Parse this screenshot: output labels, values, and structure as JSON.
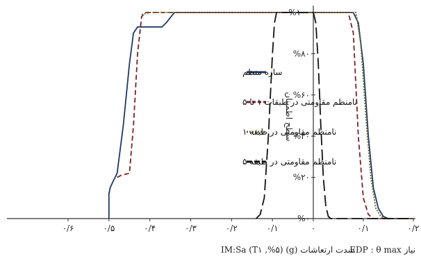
{
  "chart_data": {
    "type": "line",
    "ylabel": "سطح اطمینان",
    "y_ticks": [
      "%۰",
      "%۲۰",
      "%۴۰",
      "%۶۰",
      "%۸۰",
      "%۱۰۰"
    ],
    "ylim": [
      0,
      100
    ],
    "left_panel": {
      "xlabel": "IM:Sa (T۱ ,%۵) (g) شدت ارتعاشات",
      "x_ticks": [
        "۰/۶",
        "۰/۵",
        "۰/۴",
        "۰/۳",
        "۰/۲",
        "۰/۱",
        "۰"
      ],
      "xlim": [
        0.6,
        0
      ],
      "series": [
        {
          "name": "سازه منظم",
          "style": "solid",
          "color": "#1f3864",
          "points": [
            [
              0.5,
              0
            ],
            [
              0.5,
              12
            ],
            [
              0.497,
              15
            ],
            [
              0.49,
              18
            ],
            [
              0.48,
              22
            ],
            [
              0.465,
              45
            ],
            [
              0.45,
              75
            ],
            [
              0.44,
              90
            ],
            [
              0.43,
              93
            ],
            [
              0.4,
              93
            ],
            [
              0.37,
              93
            ],
            [
              0.36,
              95
            ],
            [
              0.34,
              100
            ],
            [
              0.0,
              100
            ]
          ]
        },
        {
          "name": "نامنظم مقاومتی در طبقات ۱ تا ۵",
          "style": "dashed",
          "color": "#7a1f2b",
          "points": [
            [
              0.48,
              20
            ],
            [
              0.47,
              21
            ],
            [
              0.45,
              22
            ],
            [
              0.44,
              45
            ],
            [
              0.43,
              80
            ],
            [
              0.42,
              98
            ],
            [
              0.41,
              100
            ],
            [
              0.0,
              100
            ]
          ]
        },
        {
          "name": "نامنظم مقاومتی در طبقه ۱",
          "style": "dotted",
          "color": "#6b6b2e",
          "points": [
            [
              0.42,
              99
            ],
            [
              0.4,
              100
            ],
            [
              0.0,
              100
            ]
          ]
        },
        {
          "name": "نامنظم مقاومتی در طبقه ۵",
          "style": "longdash",
          "color": "#111111",
          "points": [
            [
              0.14,
              0
            ],
            [
              0.13,
              2
            ],
            [
              0.12,
              10
            ],
            [
              0.11,
              40
            ],
            [
              0.1,
              80
            ],
            [
              0.095,
              95
            ],
            [
              0.09,
              100
            ],
            [
              0.0,
              100
            ]
          ]
        }
      ]
    },
    "right_panel": {
      "xlabel": "EDP : θ max نیاز",
      "x_ticks": [
        "۰",
        "۰/۱",
        "۰/۲"
      ],
      "xlim": [
        0,
        0.2
      ],
      "series": [
        {
          "name": "سازه منظم",
          "style": "solid",
          "color": "#1f3864",
          "points": [
            [
              0,
              100
            ],
            [
              0.08,
              100
            ],
            [
              0.09,
              95
            ],
            [
              0.1,
              75
            ],
            [
              0.11,
              40
            ],
            [
              0.12,
              15
            ],
            [
              0.13,
              5
            ],
            [
              0.14,
              1
            ],
            [
              0.15,
              0
            ],
            [
              0.2,
              0
            ]
          ]
        },
        {
          "name": "نامنظم مقاومتی در طبقات ۱ تا ۵",
          "style": "dashed",
          "color": "#7a1f2b",
          "points": [
            [
              0,
              100
            ],
            [
              0.07,
              100
            ],
            [
              0.08,
              90
            ],
            [
              0.09,
              40
            ],
            [
              0.1,
              10
            ],
            [
              0.11,
              2
            ],
            [
              0.12,
              0
            ],
            [
              0.2,
              0
            ]
          ]
        },
        {
          "name": "نامنظم مقاومتی در طبقه ۱",
          "style": "dotted",
          "color": "#6b6b2e",
          "points": [
            [
              0,
              100
            ],
            [
              0.085,
              100
            ],
            [
              0.095,
              85
            ],
            [
              0.105,
              50
            ],
            [
              0.115,
              20
            ],
            [
              0.125,
              5
            ],
            [
              0.135,
              1
            ],
            [
              0.145,
              0
            ],
            [
              0.2,
              0
            ]
          ]
        },
        {
          "name": "نامنظم مقاومتی در طبقه ۵",
          "style": "longdash",
          "color": "#111111",
          "points": [
            [
              0,
              100
            ],
            [
              0.005,
              95
            ],
            [
              0.01,
              75
            ],
            [
              0.015,
              45
            ],
            [
              0.02,
              20
            ],
            [
              0.025,
              6
            ],
            [
              0.03,
              1
            ],
            [
              0.035,
              0
            ],
            [
              0.2,
              0
            ]
          ]
        }
      ]
    },
    "legend": {
      "placement": "center"
    }
  }
}
